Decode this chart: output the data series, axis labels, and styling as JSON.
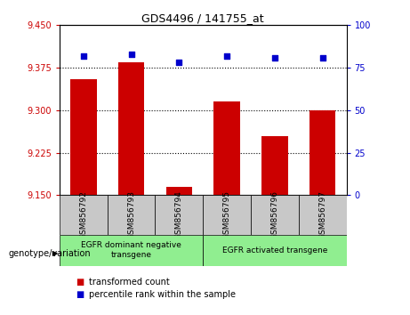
{
  "title": "GDS4496 / 141755_at",
  "samples": [
    "GSM856792",
    "GSM856793",
    "GSM856794",
    "GSM856795",
    "GSM856796",
    "GSM856797"
  ],
  "bar_values": [
    9.355,
    9.385,
    9.165,
    9.315,
    9.255,
    9.3
  ],
  "percentile_values": [
    82,
    83,
    78,
    82,
    81,
    81
  ],
  "ylim_left": [
    9.15,
    9.45
  ],
  "ylim_right": [
    0,
    100
  ],
  "yticks_left": [
    9.15,
    9.225,
    9.3,
    9.375,
    9.45
  ],
  "yticks_right": [
    0,
    25,
    50,
    75,
    100
  ],
  "bar_color": "#cc0000",
  "dot_color": "#0000cc",
  "grid_values": [
    9.225,
    9.3,
    9.375
  ],
  "group1_label": "EGFR dominant negative\ntransgene",
  "group2_label": "EGFR activated transgene",
  "group1_samples": [
    0,
    1,
    2
  ],
  "group2_samples": [
    3,
    4,
    5
  ],
  "genotype_label": "genotype/variation",
  "legend_red": "transformed count",
  "legend_blue": "percentile rank within the sample",
  "group_bg_color": "#90ee90",
  "sample_bg_color": "#c8c8c8",
  "bar_width": 0.55
}
